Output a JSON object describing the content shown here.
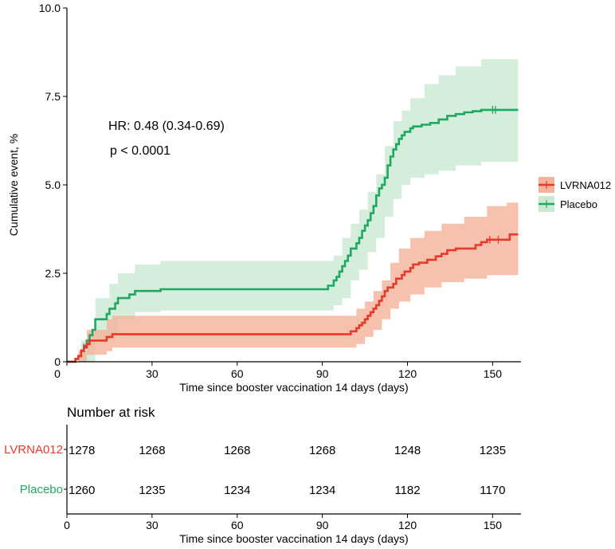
{
  "chart_data": {
    "type": "line",
    "subtype": "kaplan-meier-cumulative-incidence",
    "xlabel": "Time since booster vaccination 14 days (days)",
    "ylabel": "Cumulative event, %",
    "xlim": [
      0,
      160
    ],
    "ylim": [
      0,
      10
    ],
    "x_ticks": [
      0,
      30,
      60,
      90,
      120,
      150
    ],
    "y_ticks": [
      0,
      2.5,
      5.0,
      7.5,
      10.0
    ],
    "y_tick_labels": [
      "0",
      "2.5",
      "5.0",
      "7.5",
      "10.0"
    ],
    "grid": false,
    "legend_position": "right",
    "annotations": [
      "HR: 0.48 (0.34-0.69)",
      "p < 0.0001"
    ],
    "series": [
      {
        "name": "LVRNA012",
        "color": "#e8392b",
        "band_color": "#f4b39a",
        "steps": [
          [
            0,
            0
          ],
          [
            3,
            0.08
          ],
          [
            4,
            0.16
          ],
          [
            5,
            0.32
          ],
          [
            6,
            0.4
          ],
          [
            7,
            0.5
          ],
          [
            8,
            0.6
          ],
          [
            14,
            0.7
          ],
          [
            16,
            0.78
          ],
          [
            99,
            0.78
          ],
          [
            100,
            0.86
          ],
          [
            102,
            0.95
          ],
          [
            103,
            1.03
          ],
          [
            104,
            1.1
          ],
          [
            105,
            1.2
          ],
          [
            106,
            1.3
          ],
          [
            107,
            1.4
          ],
          [
            108,
            1.5
          ],
          [
            109,
            1.6
          ],
          [
            110,
            1.72
          ],
          [
            111,
            1.85
          ],
          [
            112,
            2.0
          ],
          [
            113,
            2.1
          ],
          [
            115,
            2.2
          ],
          [
            116,
            2.35
          ],
          [
            118,
            2.45
          ],
          [
            119,
            2.55
          ],
          [
            121,
            2.65
          ],
          [
            122,
            2.75
          ],
          [
            124,
            2.8
          ],
          [
            127,
            2.88
          ],
          [
            130,
            2.98
          ],
          [
            132,
            3.05
          ],
          [
            134,
            3.15
          ],
          [
            137,
            3.2
          ],
          [
            144,
            3.3
          ],
          [
            146,
            3.38
          ],
          [
            148,
            3.45
          ],
          [
            155,
            3.45
          ],
          [
            156,
            3.6
          ],
          [
            159,
            3.6
          ]
        ],
        "ci_lower": [
          [
            0,
            0
          ],
          [
            4,
            0
          ],
          [
            7,
            0.2
          ],
          [
            14,
            0.3
          ],
          [
            16,
            0.4
          ],
          [
            99,
            0.4
          ],
          [
            102,
            0.5
          ],
          [
            105,
            0.7
          ],
          [
            108,
            0.9
          ],
          [
            111,
            1.2
          ],
          [
            114,
            1.5
          ],
          [
            117,
            1.7
          ],
          [
            121,
            1.9
          ],
          [
            126,
            2.1
          ],
          [
            132,
            2.25
          ],
          [
            140,
            2.35
          ],
          [
            148,
            2.45
          ],
          [
            159,
            2.55
          ]
        ],
        "ci_upper": [
          [
            0,
            0
          ],
          [
            4,
            0.3
          ],
          [
            7,
            0.9
          ],
          [
            14,
            1.2
          ],
          [
            16,
            1.3
          ],
          [
            99,
            1.3
          ],
          [
            102,
            1.5
          ],
          [
            105,
            1.7
          ],
          [
            108,
            2.0
          ],
          [
            111,
            2.3
          ],
          [
            114,
            2.8
          ],
          [
            117,
            3.2
          ],
          [
            121,
            3.5
          ],
          [
            126,
            3.7
          ],
          [
            132,
            3.9
          ],
          [
            140,
            4.1
          ],
          [
            148,
            4.4
          ],
          [
            155,
            4.5
          ],
          [
            159,
            4.65
          ]
        ],
        "censor_marks": [
          [
            6,
            0.4
          ],
          [
            149,
            3.45
          ],
          [
            152,
            3.45
          ]
        ]
      },
      {
        "name": "Placebo",
        "color": "#1fa862",
        "band_color": "#cbe8d2",
        "steps": [
          [
            0,
            0
          ],
          [
            3,
            0.08
          ],
          [
            4,
            0.16
          ],
          [
            5,
            0.3
          ],
          [
            6,
            0.45
          ],
          [
            7,
            0.6
          ],
          [
            8,
            0.75
          ],
          [
            9,
            0.9
          ],
          [
            10,
            1.2
          ],
          [
            14,
            1.35
          ],
          [
            15,
            1.5
          ],
          [
            17,
            1.65
          ],
          [
            18,
            1.8
          ],
          [
            22,
            1.9
          ],
          [
            24,
            2.0
          ],
          [
            33,
            2.05
          ],
          [
            91,
            2.05
          ],
          [
            92,
            2.15
          ],
          [
            94,
            2.3
          ],
          [
            95,
            2.4
          ],
          [
            96,
            2.55
          ],
          [
            97,
            2.7
          ],
          [
            98,
            2.85
          ],
          [
            99,
            3.0
          ],
          [
            100,
            3.2
          ],
          [
            102,
            3.35
          ],
          [
            103,
            3.5
          ],
          [
            104,
            3.7
          ],
          [
            105,
            3.85
          ],
          [
            106,
            4.0
          ],
          [
            107,
            4.2
          ],
          [
            108,
            4.4
          ],
          [
            109,
            4.7
          ],
          [
            110,
            4.9
          ],
          [
            111,
            5.0
          ],
          [
            112,
            5.2
          ],
          [
            113,
            5.55
          ],
          [
            114,
            5.8
          ],
          [
            115,
            6.0
          ],
          [
            116,
            6.15
          ],
          [
            117,
            6.3
          ],
          [
            118,
            6.4
          ],
          [
            119,
            6.5
          ],
          [
            121,
            6.6
          ],
          [
            122,
            6.65
          ],
          [
            125,
            6.7
          ],
          [
            128,
            6.75
          ],
          [
            131,
            6.85
          ],
          [
            134,
            6.95
          ],
          [
            137,
            7.0
          ],
          [
            140,
            7.05
          ],
          [
            143,
            7.08
          ],
          [
            146,
            7.12
          ],
          [
            159,
            7.12
          ]
        ],
        "ci_lower": [
          [
            0,
            0
          ],
          [
            5,
            0
          ],
          [
            10,
            0.6
          ],
          [
            15,
            0.8
          ],
          [
            18,
            1.2
          ],
          [
            24,
            1.4
          ],
          [
            33,
            1.45
          ],
          [
            91,
            1.45
          ],
          [
            94,
            1.6
          ],
          [
            97,
            1.8
          ],
          [
            100,
            2.3
          ],
          [
            103,
            2.6
          ],
          [
            106,
            3.1
          ],
          [
            109,
            3.5
          ],
          [
            112,
            4.1
          ],
          [
            115,
            4.6
          ],
          [
            118,
            5.0
          ],
          [
            121,
            5.2
          ],
          [
            126,
            5.3
          ],
          [
            131,
            5.4
          ],
          [
            137,
            5.55
          ],
          [
            146,
            5.65
          ],
          [
            159,
            5.7
          ]
        ],
        "ci_upper": [
          [
            0,
            0
          ],
          [
            5,
            0.6
          ],
          [
            10,
            1.8
          ],
          [
            15,
            2.2
          ],
          [
            18,
            2.5
          ],
          [
            24,
            2.75
          ],
          [
            33,
            2.85
          ],
          [
            91,
            2.85
          ],
          [
            94,
            3.0
          ],
          [
            97,
            3.5
          ],
          [
            100,
            3.9
          ],
          [
            103,
            4.3
          ],
          [
            106,
            4.8
          ],
          [
            109,
            5.3
          ],
          [
            112,
            6.1
          ],
          [
            115,
            6.8
          ],
          [
            118,
            7.1
          ],
          [
            121,
            7.45
          ],
          [
            126,
            7.85
          ],
          [
            131,
            8.1
          ],
          [
            137,
            8.35
          ],
          [
            146,
            8.55
          ],
          [
            159,
            8.55
          ]
        ],
        "censor_marks": [
          [
            150,
            7.12
          ],
          [
            151,
            7.12
          ]
        ]
      }
    ],
    "risk_table": {
      "title": "Number at risk",
      "xlabel": "Time since booster vaccination 14 days (days)",
      "times": [
        0,
        30,
        60,
        90,
        120,
        150
      ],
      "rows": [
        {
          "name": "LVRNA012",
          "color": "#e8392b",
          "values": [
            "1278",
            "1268",
            "1268",
            "1268",
            "1248",
            "1235"
          ]
        },
        {
          "name": "Placebo",
          "color": "#1fa862",
          "values": [
            "1260",
            "1235",
            "1234",
            "1234",
            "1182",
            "1170"
          ]
        }
      ]
    }
  }
}
